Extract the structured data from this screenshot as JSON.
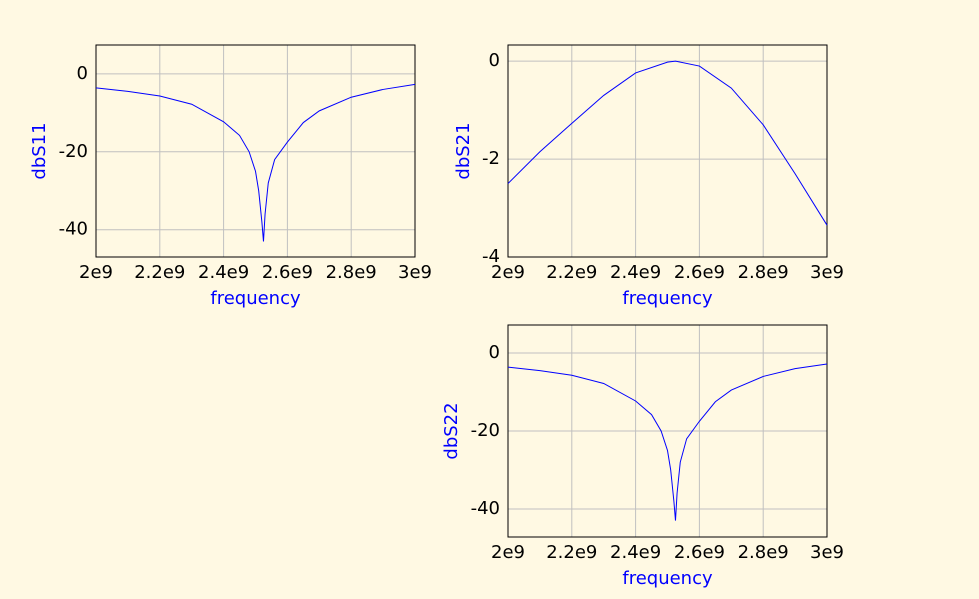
{
  "chart_data": [
    {
      "type": "line",
      "xlabel": "frequency",
      "ylabel": "dbS11",
      "color": "#0000ff",
      "grid": true,
      "x": [
        2000000000,
        2100000000,
        2200000000,
        2300000000,
        2400000000,
        2450000000,
        2480000000,
        2500000000,
        2510000000,
        2520000000,
        2525000000,
        2530000000,
        2540000000,
        2560000000,
        2600000000,
        2650000000,
        2700000000,
        2800000000,
        2900000000,
        3000000000
      ],
      "values": [
        -3.6,
        -4.5,
        -5.7,
        -7.8,
        -12.3,
        -15.8,
        -20,
        -25,
        -30,
        -38,
        -43,
        -36,
        -28,
        -22,
        -17.5,
        -12.5,
        -9.5,
        -6,
        -4,
        -2.7
      ],
      "xlim": [
        2000000000,
        3000000000
      ],
      "xticks": [
        {
          "value": 2000000000,
          "label": "2e9"
        },
        {
          "value": 2200000000,
          "label": "2.2e9"
        },
        {
          "value": 2400000000,
          "label": "2.4e9"
        },
        {
          "value": 2600000000,
          "label": "2.6e9"
        },
        {
          "value": 2800000000,
          "label": "2.8e9"
        },
        {
          "value": 3000000000,
          "label": "3e9"
        }
      ],
      "ylim": [
        -47,
        7.4
      ],
      "yticks": [
        0,
        -20,
        -40
      ]
    },
    {
      "type": "line",
      "xlabel": "frequency",
      "ylabel": "dbS21",
      "color": "#0000ff",
      "grid": true,
      "x": [
        2000000000,
        2100000000,
        2200000000,
        2300000000,
        2400000000,
        2500000000,
        2525000000,
        2600000000,
        2700000000,
        2800000000,
        2900000000,
        3000000000
      ],
      "values": [
        -2.5,
        -1.85,
        -1.27,
        -0.7,
        -0.24,
        -0.02,
        0,
        -0.1,
        -0.55,
        -1.3,
        -2.3,
        -3.35
      ],
      "xlim": [
        2000000000,
        3000000000
      ],
      "xticks": [
        {
          "value": 2000000000,
          "label": "2e9"
        },
        {
          "value": 2200000000,
          "label": "2.2e9"
        },
        {
          "value": 2400000000,
          "label": "2.4e9"
        },
        {
          "value": 2600000000,
          "label": "2.6e9"
        },
        {
          "value": 2800000000,
          "label": "2.8e9"
        },
        {
          "value": 3000000000,
          "label": "3e9"
        }
      ],
      "ylim": [
        -4,
        0.33
      ],
      "yticks": [
        0,
        -2,
        -4
      ]
    },
    {
      "type": "line",
      "xlabel": "frequency",
      "ylabel": "dbS22",
      "color": "#0000ff",
      "grid": true,
      "x": [
        2000000000,
        2100000000,
        2200000000,
        2300000000,
        2400000000,
        2450000000,
        2480000000,
        2500000000,
        2510000000,
        2520000000,
        2525000000,
        2530000000,
        2540000000,
        2560000000,
        2600000000,
        2650000000,
        2700000000,
        2800000000,
        2900000000,
        3000000000
      ],
      "values": [
        -3.6,
        -4.5,
        -5.7,
        -7.8,
        -12.3,
        -15.8,
        -20,
        -25,
        -30,
        -38,
        -43,
        -36,
        -28,
        -22,
        -17.5,
        -12.5,
        -9.5,
        -6,
        -4,
        -2.8
      ],
      "xlim": [
        2000000000,
        3000000000
      ],
      "xticks": [
        {
          "value": 2000000000,
          "label": "2e9"
        },
        {
          "value": 2200000000,
          "label": "2.2e9"
        },
        {
          "value": 2400000000,
          "label": "2.4e9"
        },
        {
          "value": 2600000000,
          "label": "2.6e9"
        },
        {
          "value": 2800000000,
          "label": "2.8e9"
        },
        {
          "value": 3000000000,
          "label": "3e9"
        }
      ],
      "ylim": [
        -47.2,
        7.2
      ],
      "yticks": [
        0,
        -20,
        -40
      ]
    }
  ]
}
